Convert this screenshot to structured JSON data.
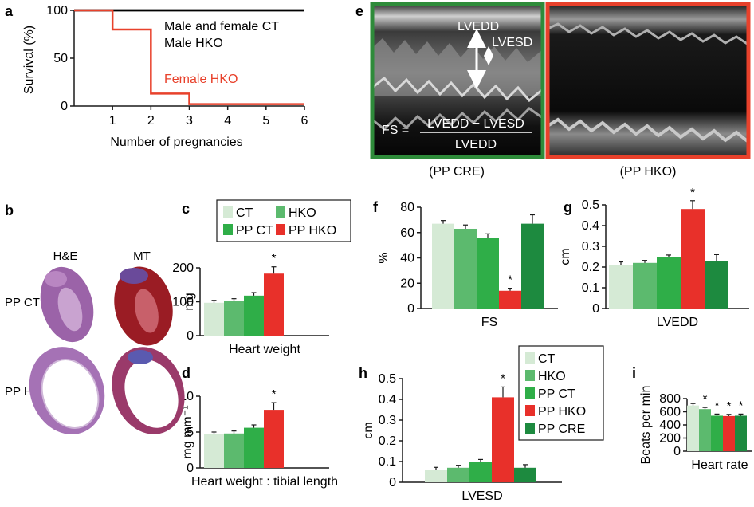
{
  "colors": {
    "ct": "#d5ead5",
    "hko": "#5cba6e",
    "pp_ct": "#2fae48",
    "pp_hko": "#e8302a",
    "pp_cre": "#1d8a3f",
    "axis": "#1a1a1a",
    "survival_ct": "#000000",
    "survival_female_hko": "#e8412b",
    "echo_cre_frame": "#2e8b3a",
    "echo_hko_frame": "#e8412b"
  },
  "panel_labels": {
    "a": "a",
    "b": "b",
    "c": "c",
    "d": "d",
    "e": "e",
    "f": "f",
    "g": "g",
    "h": "h",
    "i": "i"
  },
  "panel_b": {
    "col_he": "H&E",
    "col_mt": "MT",
    "row_ppct": "PP CT",
    "row_pphko": "PP HKO"
  },
  "panel_e": {
    "lvedd": "LVEDD",
    "lvesd": "LVESD",
    "fs_lhs": "FS =",
    "fs_numerator": "LVEDD − LVESD",
    "fs_denominator": "LVEDD",
    "caption_left": "(PP CRE)",
    "caption_right": "(PP HKO)"
  },
  "legend_c": [
    "CT",
    "HKO",
    "PP CT",
    "PP HKO"
  ],
  "legend_h": [
    "CT",
    "HKO",
    "PP CT",
    "PP HKO",
    "PP CRE"
  ],
  "chart_data": [
    {
      "panel": "a",
      "type": "line",
      "xlabel": "Number of pregnancies",
      "ylabel": "Survival (%)",
      "xlim": [
        0,
        6
      ],
      "ylim": [
        0,
        100
      ],
      "xticks": [
        "1",
        "2",
        "3",
        "4",
        "5",
        "6"
      ],
      "yticks": [
        "0",
        "50",
        "100"
      ],
      "series": [
        {
          "name": "Male and female CT",
          "color": "#000000",
          "x": [
            0,
            6
          ],
          "y": [
            100,
            100
          ]
        },
        {
          "name": "Male HKO",
          "color": "#000000",
          "x": [
            0,
            6
          ],
          "y": [
            100,
            100
          ]
        },
        {
          "name": "Female HKO",
          "color": "#e8412b",
          "step": true,
          "x": [
            0,
            1,
            1,
            2,
            2,
            3,
            3,
            6
          ],
          "y": [
            100,
            100,
            80,
            80,
            13,
            13,
            2,
            2
          ]
        }
      ]
    },
    {
      "panel": "c",
      "type": "bar",
      "xlabel": "Heart weight",
      "ylabel": "mg",
      "ylim": [
        0,
        200
      ],
      "yticks": [
        "0",
        "100",
        "200"
      ],
      "categories": [
        "CT",
        "HKO",
        "PP CT",
        "PP HKO"
      ],
      "values": [
        97,
        102,
        118,
        183
      ],
      "errors": [
        7,
        7,
        9,
        20
      ],
      "stars": [
        "",
        "",
        "",
        "*"
      ]
    },
    {
      "panel": "d",
      "type": "bar",
      "xlabel": "Heart weight : tibial length",
      "ylabel": "mg mm⁻¹",
      "ylim": [
        0,
        10
      ],
      "yticks": [
        "0",
        "5",
        "10"
      ],
      "categories": [
        "CT",
        "HKO",
        "PP CT",
        "PP HKO"
      ],
      "values": [
        4.7,
        4.8,
        5.6,
        8.1
      ],
      "errors": [
        0.3,
        0.35,
        0.4,
        1.0
      ],
      "stars": [
        "",
        "",
        "",
        "*"
      ]
    },
    {
      "panel": "f",
      "type": "bar",
      "xlabel": "FS",
      "ylabel": "%",
      "ylim": [
        0,
        80
      ],
      "yticks": [
        "0",
        "20",
        "40",
        "60",
        "80"
      ],
      "categories": [
        "CT",
        "HKO",
        "PP CT",
        "PP HKO",
        "PP CRE"
      ],
      "values": [
        67,
        63,
        56,
        14,
        67
      ],
      "errors": [
        2.5,
        3,
        3,
        2,
        7
      ],
      "stars": [
        "",
        "",
        "",
        "*",
        ""
      ]
    },
    {
      "panel": "g",
      "type": "bar",
      "xlabel": "LVEDD",
      "ylabel": "cm",
      "ylim": [
        0,
        0.5
      ],
      "yticks": [
        "0",
        "0.1",
        "0.2",
        "0.3",
        "0.4",
        "0.5"
      ],
      "categories": [
        "CT",
        "HKO",
        "PP CT",
        "PP HKO",
        "PP CRE"
      ],
      "values": [
        0.21,
        0.22,
        0.25,
        0.48,
        0.23
      ],
      "errors": [
        0.015,
        0.012,
        0.008,
        0.04,
        0.03
      ],
      "stars": [
        "",
        "",
        "",
        "*",
        ""
      ]
    },
    {
      "panel": "h",
      "type": "bar",
      "xlabel": "LVESD",
      "ylabel": "cm",
      "ylim": [
        0,
        0.5
      ],
      "yticks": [
        "0",
        "0.1",
        "0.2",
        "0.3",
        "0.4",
        "0.5"
      ],
      "categories": [
        "CT",
        "HKO",
        "PP CT",
        "PP HKO",
        "PP CRE"
      ],
      "values": [
        0.06,
        0.07,
        0.1,
        0.41,
        0.07
      ],
      "errors": [
        0.012,
        0.012,
        0.01,
        0.05,
        0.015
      ],
      "stars": [
        "",
        "",
        "",
        "*",
        ""
      ]
    },
    {
      "panel": "i",
      "type": "bar",
      "xlabel": "Heart rate",
      "ylabel": "Beats per min",
      "ylim": [
        0,
        800
      ],
      "yticks": [
        "0",
        "200",
        "400",
        "600",
        "800"
      ],
      "categories": [
        "CT",
        "HKO",
        "PP CT",
        "PP HKO",
        "PP CRE"
      ],
      "values": [
        695,
        640,
        540,
        535,
        540
      ],
      "errors": [
        30,
        25,
        25,
        25,
        25
      ],
      "stars": [
        "",
        "*",
        "*",
        "*",
        "*"
      ]
    }
  ]
}
